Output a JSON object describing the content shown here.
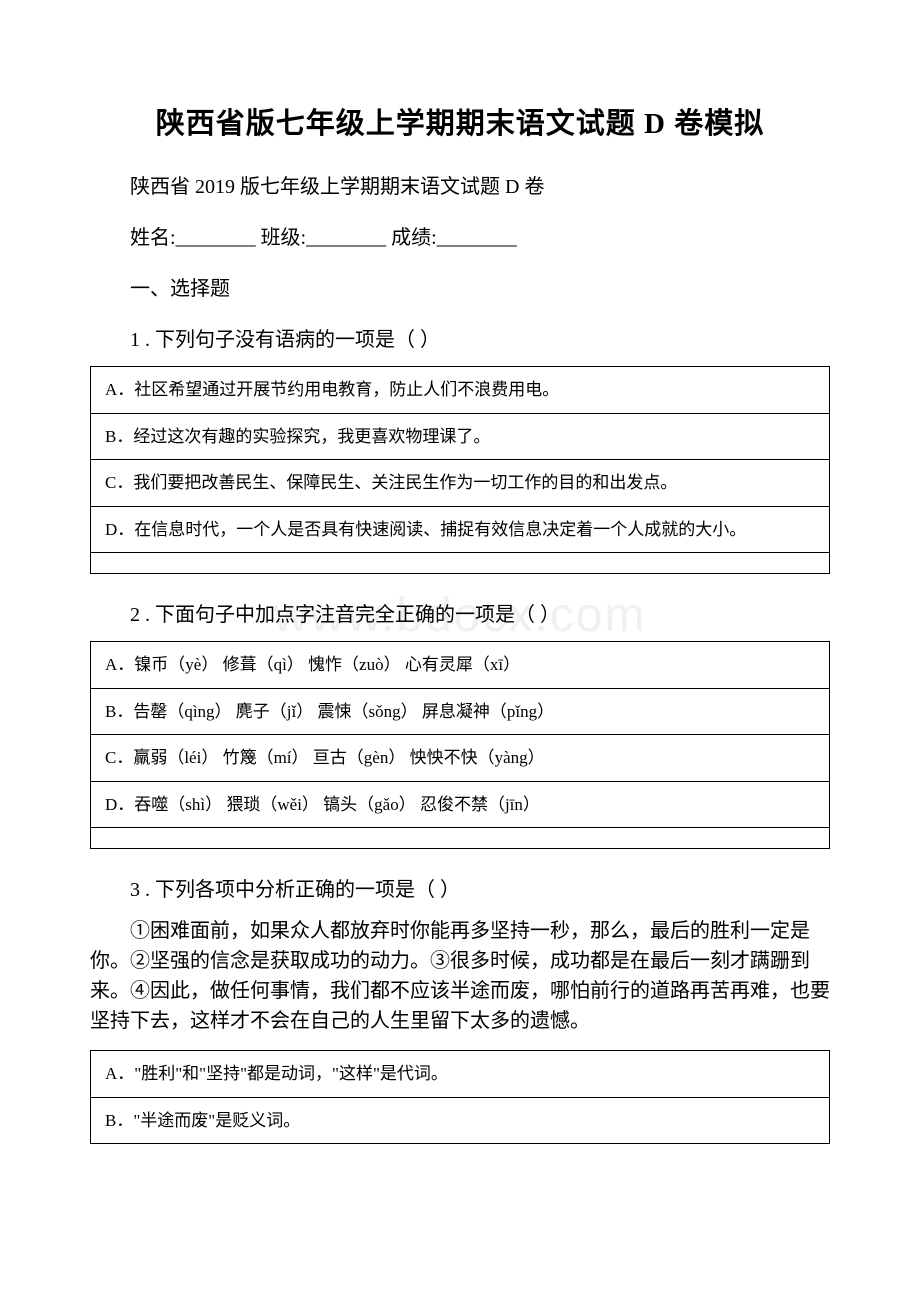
{
  "title": "陕西省版七年级上学期期末语文试题 D 卷模拟",
  "subtitle": "陕西省 2019 版七年级上学期期末语文试题 D 卷",
  "info": {
    "name_label": "姓名:",
    "class_label": "班级:",
    "score_label": "成绩:",
    "blank": "________"
  },
  "section1": "一、选择题",
  "q1": {
    "stem": "1 . 下列句子没有语病的一项是（ ）",
    "options": [
      "A．社区希望通过开展节约用电教育，防止人们不浪费用电。",
      "B．经过这次有趣的实验探究，我更喜欢物理课了。",
      "C．我们要把改善民生、保障民生、关注民生作为一切工作的目的和出发点。",
      "D．在信息时代，一个人是否具有快速阅读、捕捉有效信息决定着一个人成就的大小。",
      ""
    ]
  },
  "q2": {
    "stem": "2 . 下面句子中加点字注音完全正确的一项是（   ）",
    "options": [
      "A．镍币（yè）   修葺（qì）   愧怍（zuò）    心有灵犀（xī）",
      "B．告罄（qìng） 麂子（jǐ）   震悚（sǒng）  屏息凝神（pǐng）",
      "C．羸弱（léi）  竹篾（mí）   亘古（gèn）    怏怏不快（yàng）",
      "D．吞噬（shì）  猥琐（wěi）  镐头（gǎo）    忍俊不禁（jīn）",
      ""
    ]
  },
  "q3": {
    "stem": "3 . 下列各项中分析正确的一项是（ ）",
    "passage": "①困难面前，如果众人都放弃时你能再多坚持一秒，那么，最后的胜利一定是你。②坚强的信念是获取成功的动力。③很多时候，成功都是在最后一刻才蹒跚到来。④因此，做任何事情，我们都不应该半途而废，哪怕前行的道路再苦再难，也要坚持下去，这样才不会在自己的人生里留下太多的遗憾。",
    "options": [
      "A．\"胜利\"和\"坚持\"都是动词，\"这样\"是代词。",
      "B．\"半途而废\"是贬义词。"
    ]
  },
  "watermark": "www.bdocx.com",
  "styles": {
    "page_bg": "#ffffff",
    "text_color": "#000000",
    "border_color": "#000000",
    "watermark_color": "#f0f0f0",
    "title_fontsize": 29,
    "body_fontsize": 20,
    "table_fontsize": 17
  }
}
